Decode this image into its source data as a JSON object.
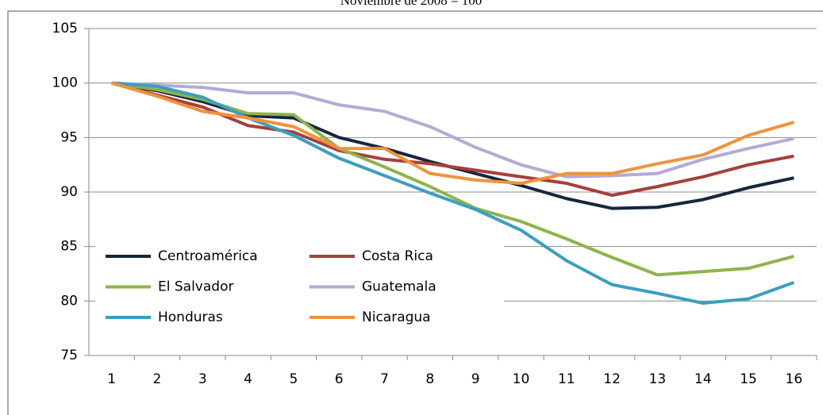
{
  "chart_data": {
    "type": "line",
    "subtitle": "Noviembre de 2008 = 100",
    "x": [
      1,
      2,
      3,
      4,
      5,
      6,
      7,
      8,
      9,
      10,
      11,
      12,
      13,
      14,
      15,
      16
    ],
    "xlim": [
      0.5,
      16.5
    ],
    "ylim": [
      75,
      105
    ],
    "yticks": [
      75,
      80,
      85,
      90,
      95,
      100,
      105
    ],
    "grid": true,
    "legend": "bottom-left",
    "series": [
      {
        "name": "Centroamérica",
        "color": "#17263f",
        "values": [
          100,
          99.3,
          98.3,
          97.0,
          96.8,
          95.0,
          94.0,
          92.8,
          91.7,
          90.6,
          89.4,
          88.5,
          88.6,
          89.3,
          90.4,
          91.3
        ]
      },
      {
        "name": "Costa Rica",
        "color": "#a5403c",
        "values": [
          100,
          98.9,
          97.8,
          96.1,
          95.5,
          93.8,
          93.0,
          92.6,
          92.0,
          91.4,
          90.8,
          89.7,
          90.5,
          91.4,
          92.5,
          93.3
        ]
      },
      {
        "name": "El Salvador",
        "color": "#8fb34a",
        "values": [
          100,
          99.4,
          98.5,
          97.2,
          97.1,
          94.0,
          92.3,
          90.5,
          88.5,
          87.3,
          85.7,
          84.0,
          82.4,
          82.7,
          83.0,
          84.1
        ]
      },
      {
        "name": "Guatemala",
        "color": "#b6a9d6",
        "values": [
          100,
          99.8,
          99.6,
          99.1,
          99.1,
          98.0,
          97.4,
          96.0,
          94.1,
          92.5,
          91.4,
          91.5,
          91.7,
          93.0,
          94.0,
          94.9
        ]
      },
      {
        "name": "Honduras",
        "color": "#3a9fbf",
        "values": [
          100,
          99.7,
          98.7,
          96.8,
          95.2,
          93.1,
          91.5,
          89.9,
          88.4,
          86.5,
          83.7,
          81.5,
          80.7,
          79.8,
          80.2,
          81.7
        ]
      },
      {
        "name": "Nicaragua",
        "color": "#f0923a",
        "values": [
          100,
          98.8,
          97.4,
          96.8,
          96.0,
          94.0,
          94.0,
          91.7,
          91.1,
          90.8,
          91.7,
          91.7,
          92.6,
          93.4,
          95.2,
          96.4
        ]
      }
    ]
  }
}
